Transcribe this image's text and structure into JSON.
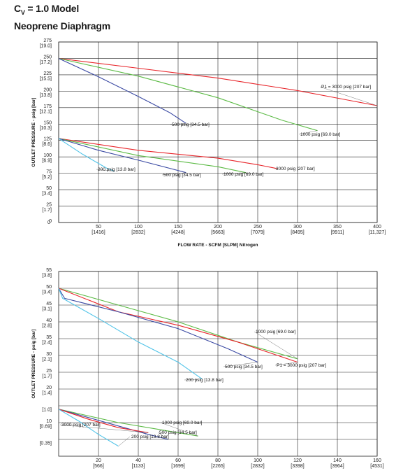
{
  "header": {
    "title_main": "C",
    "title_sub": "V",
    "title_rest": " = 1.0 Model",
    "subtitle": "Neoprene Diaphragm"
  },
  "chart_data": [
    {
      "type": "line",
      "ylabel": "OUTLET PRESSURE - psig [bar]",
      "xlabel": "FLOW RATE - SCFM [SLPM] Nitrogen",
      "xlim": [
        0,
        400
      ],
      "ylim": [
        0,
        275
      ],
      "x_ticks": [
        {
          "value": 0,
          "label": "0",
          "sub": ""
        },
        {
          "value": 50,
          "label": "50",
          "sub": "[1416]"
        },
        {
          "value": 100,
          "label": "100",
          "sub": "[2832]"
        },
        {
          "value": 150,
          "label": "150",
          "sub": "[4248]"
        },
        {
          "value": 200,
          "label": "200",
          "sub": "[5663]"
        },
        {
          "value": 250,
          "label": "250",
          "sub": "[7079]"
        },
        {
          "value": 300,
          "label": "300",
          "sub": "[8495]"
        },
        {
          "value": 350,
          "label": "350",
          "sub": "[9911]"
        },
        {
          "value": 400,
          "label": "400",
          "sub": "[11,327]"
        }
      ],
      "y_ticks": [
        {
          "value": 275,
          "label": "275",
          "sub": "[19.0]"
        },
        {
          "value": 250,
          "label": "250",
          "sub": "[17.2]"
        },
        {
          "value": 225,
          "label": "225",
          "sub": "[15.5]"
        },
        {
          "value": 200,
          "label": "200",
          "sub": "[13.8]"
        },
        {
          "value": 175,
          "label": "175",
          "sub": "[12.1]"
        },
        {
          "value": 150,
          "label": "150",
          "sub": "[10.3]"
        },
        {
          "value": 125,
          "label": "125",
          "sub": "[8.6]"
        },
        {
          "value": 100,
          "label": "100",
          "sub": "[6.9]"
        },
        {
          "value": 75,
          "label": "75",
          "sub": "[5.2]"
        },
        {
          "value": 50,
          "label": "50",
          "sub": "[3.4]"
        },
        {
          "value": 25,
          "label": "25",
          "sub": "[1.7]"
        },
        {
          "value": 0,
          "label": "0",
          "sub": ""
        }
      ],
      "grid": true,
      "series": [
        {
          "name": "P1 = 3000 psig [207 bar]",
          "color": "#e8262b",
          "x": [
            0,
            100,
            200,
            300,
            400
          ],
          "y": [
            250,
            235,
            220,
            201,
            178
          ]
        },
        {
          "name": "1000 psig [69.0 bar]",
          "color": "#5dbb46",
          "x": [
            0,
            100,
            200,
            280,
            325
          ],
          "y": [
            250,
            223,
            190,
            156,
            140
          ]
        },
        {
          "name": "500 psig [34.5 bar]",
          "color": "#3b4aa3",
          "x": [
            0,
            50,
            100,
            140,
            160
          ],
          "y": [
            250,
            222,
            192,
            167,
            151
          ]
        },
        {
          "name": "3000 psig [207 bar]",
          "color": "#e8262b",
          "x": [
            0,
            100,
            200,
            250,
            275
          ],
          "y": [
            128,
            110,
            98,
            88,
            82
          ]
        },
        {
          "name": "1000 psig [69.0 bar]",
          "color": "#5dbb46",
          "x": [
            0,
            100,
            200,
            235
          ],
          "y": [
            128,
            102,
            85,
            76
          ]
        },
        {
          "name": "500 psig [34.5 bar]",
          "color": "#3b4aa3",
          "x": [
            0,
            50,
            100,
            160
          ],
          "y": [
            128,
            110,
            95,
            76
          ]
        },
        {
          "name": "200 psig [13.8 bar]",
          "color": "#4fc3e8",
          "x": [
            0,
            30,
            60,
            70
          ],
          "y": [
            128,
            104,
            83,
            78
          ]
        }
      ]
    },
    {
      "type": "line",
      "ylabel": "OUTLET PRESSURE - psig [bar]",
      "xlabel": "",
      "xlim": [
        0,
        160
      ],
      "ylim": [
        0,
        55
      ],
      "x_ticks": [
        {
          "value": 20,
          "label": "20",
          "sub": "[566]"
        },
        {
          "value": 40,
          "label": "40",
          "sub": "[1133]"
        },
        {
          "value": 60,
          "label": "60",
          "sub": "[1699]"
        },
        {
          "value": 80,
          "label": "80",
          "sub": "[2265]"
        },
        {
          "value": 100,
          "label": "100",
          "sub": "[2832]"
        },
        {
          "value": 120,
          "label": "120",
          "sub": "[3398]"
        },
        {
          "value": 140,
          "label": "140",
          "sub": "[3964]"
        },
        {
          "value": 160,
          "label": "160",
          "sub": "[4531]"
        }
      ],
      "y_ticks": [
        {
          "value": 55,
          "label": "55",
          "sub": "[3.8]"
        },
        {
          "value": 50,
          "label": "50",
          "sub": "[3.4]"
        },
        {
          "value": 45,
          "label": "45",
          "sub": "[3.1]"
        },
        {
          "value": 40,
          "label": "40",
          "sub": "[2.8]"
        },
        {
          "value": 35,
          "label": "35",
          "sub": "[2.4]"
        },
        {
          "value": 30,
          "label": "30",
          "sub": "[2.1]"
        },
        {
          "value": 25,
          "label": "25",
          "sub": "[1.7]"
        },
        {
          "value": 20,
          "label": "20",
          "sub": "[1.4]"
        },
        {
          "value": 15,
          "label": "",
          "sub": "[1.0]"
        },
        {
          "value": 10,
          "label": "10",
          "sub": "[0.69]"
        },
        {
          "value": 5,
          "label": "",
          "sub": "[0.35]"
        }
      ],
      "grid": true,
      "series": [
        {
          "name": "1000 psig [69.0 bar]",
          "color": "#5dbb46",
          "x": [
            0,
            30,
            60,
            90,
            120
          ],
          "y": [
            50,
            45,
            40,
            34,
            29
          ]
        },
        {
          "name": "P1 = 3000 psig [207 bar]",
          "color": "#e8262b",
          "x": [
            0,
            30,
            60,
            90,
            120
          ],
          "y": [
            50,
            43,
            39,
            34,
            28
          ]
        },
        {
          "name": "500 psig [34.5 bar]",
          "color": "#3b4aa3",
          "x": [
            0,
            3,
            30,
            60,
            85,
            100
          ],
          "y": [
            50,
            47,
            43,
            38,
            32,
            28
          ]
        },
        {
          "name": "200 psig [13.8 bar]",
          "color": "#4fc3e8",
          "x": [
            0,
            2,
            20,
            40,
            60,
            72
          ],
          "y": [
            50,
            47,
            41,
            34,
            28,
            23
          ]
        },
        {
          "name": "1000 psig [69.0 bar]",
          "color": "#5dbb46",
          "x": [
            0,
            15,
            30,
            50,
            70
          ],
          "y": [
            14,
            12,
            10,
            8,
            6
          ]
        },
        {
          "name": "500 psig [34.5 bar]",
          "color": "#3b4aa3",
          "x": [
            0,
            15,
            30,
            45,
            55
          ],
          "y": [
            14,
            11.5,
            9,
            6.5,
            5
          ]
        },
        {
          "name": "3000 psig [207 bar]",
          "color": "#e8262b",
          "x": [
            0,
            15,
            30,
            45
          ],
          "y": [
            14,
            11,
            8.5,
            7
          ]
        },
        {
          "name": "200 psig [13.8 bar]",
          "color": "#4fc3e8",
          "x": [
            0,
            10,
            20,
            30
          ],
          "y": [
            14,
            10.5,
            6.5,
            3
          ]
        }
      ]
    }
  ],
  "annotations": [
    [
      {
        "text": "P1 = 3000 psig [207 bar]",
        "series": 0
      },
      {
        "text": "1000 psig [69.0 bar]",
        "series": 1
      },
      {
        "text": "500 psig [34.5 bar]",
        "series": 2
      },
      {
        "text": "3000 psig [207 bar]",
        "series": 3
      },
      {
        "text": "1000 psig [69.0 bar]",
        "series": 4
      },
      {
        "text": "500 psig [34.5 bar]",
        "series": 5
      },
      {
        "text": "200 psig [13.8 bar]",
        "series": 6
      }
    ],
    [
      {
        "text": "1000 psig [69.0 bar]",
        "series": 0
      },
      {
        "text": "P1 = 3000 psig [207 bar]",
        "series": 1
      },
      {
        "text": "500 psig [34.5 bar]",
        "series": 2
      },
      {
        "text": "200 psig [13.8 bar]",
        "series": 3
      },
      {
        "text": "1000 psig [69.0 bar]",
        "series": 4
      },
      {
        "text": "500 psig [34.5 bar]",
        "series": 5
      },
      {
        "text": "3000 psig [207 bar]",
        "series": 6
      },
      {
        "text": "200 psig [13.8 bar]",
        "series": 7
      }
    ]
  ]
}
